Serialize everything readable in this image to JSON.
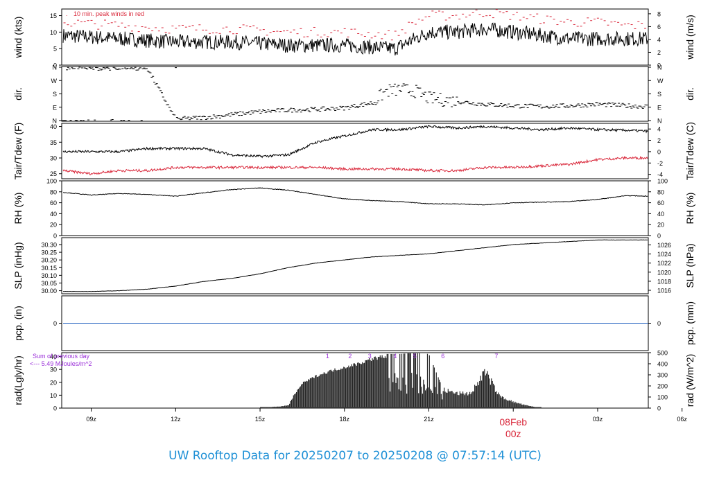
{
  "title": "UW Rooftop Data for 20250207  to  20250208 @ 07:57:14  (UTC)",
  "colors": {
    "line": "#000000",
    "dewpoint": "#d9273a",
    "peak": "#d9273a",
    "precip": "#1f5fbf",
    "footer": "#1e90d6",
    "day_label": "#d9273a",
    "rad_note": "#9b30d9"
  },
  "chart_data": [
    {
      "type": "line",
      "panel": "wind",
      "ylabel": "wind (kts)",
      "ylabel_right": "wind (m/s)",
      "ylim": [
        0,
        17
      ],
      "yticks": [
        "0",
        "5",
        "10",
        "15"
      ],
      "yticks_right": [
        "0",
        "2",
        "4",
        "6",
        "8"
      ],
      "annotation": "10 min. peak winds in red",
      "series": [
        {
          "role": "wind",
          "x": [
            8.0,
            10,
            12,
            14,
            16,
            18,
            19.8,
            20.5,
            21,
            22,
            23,
            24,
            25,
            26,
            27,
            28,
            28.8
          ],
          "y": [
            9,
            8,
            7,
            7,
            6,
            6,
            5,
            8,
            10,
            10,
            11,
            10,
            9,
            8,
            8,
            8,
            8
          ]
        },
        {
          "role": "peak",
          "x": [
            8.0,
            10,
            12,
            14,
            16,
            18,
            19.8,
            20.5,
            21,
            22,
            23,
            24,
            25,
            26,
            27,
            28,
            28.8
          ],
          "y": [
            13,
            12,
            11,
            11,
            10,
            10,
            9,
            13,
            15,
            15,
            16,
            15,
            14,
            13,
            13,
            12,
            12
          ]
        }
      ]
    },
    {
      "type": "scatter",
      "panel": "dir",
      "ylabel": "dir.",
      "ylabel_right": "dir.",
      "ylim": [
        0,
        360
      ],
      "yticks": [
        "N",
        "E",
        "S",
        "W",
        "N"
      ],
      "series": [
        {
          "role": "dir",
          "x": [
            8.0,
            9,
            10,
            11,
            12,
            13,
            14,
            15,
            16,
            17,
            18,
            19,
            19.5,
            20,
            20.5,
            21,
            22,
            23,
            24,
            25,
            26,
            27,
            28,
            28.8
          ],
          "y": [
            355,
            350,
            355,
            350,
            10,
            20,
            40,
            60,
            70,
            75,
            85,
            120,
            200,
            210,
            200,
            150,
            130,
            110,
            100,
            95,
            100,
            110,
            100,
            95
          ]
        }
      ]
    },
    {
      "type": "line",
      "panel": "temp",
      "ylabel": "Tair/Tdew (F)",
      "ylabel_right": "Tair/Tdew (C)",
      "ylim": [
        23.4,
        41
      ],
      "yticks": [
        "25",
        "30",
        "35",
        "40"
      ],
      "yticks_right": [
        "-4",
        "-2",
        "0",
        "2",
        "4"
      ],
      "series": [
        {
          "role": "air",
          "x": [
            8.0,
            9,
            10,
            11,
            12,
            13,
            14,
            15,
            16,
            16.5,
            17,
            18,
            18.5,
            19,
            20,
            21,
            22,
            23,
            24,
            25,
            26,
            27,
            28,
            28.8
          ],
          "y": [
            32,
            32,
            32,
            33,
            33,
            33,
            31,
            30.5,
            31,
            33,
            35,
            37,
            38,
            39,
            39,
            40,
            39.5,
            40,
            39.5,
            39,
            39.5,
            39,
            38.8,
            38.5
          ]
        },
        {
          "role": "dew",
          "x": [
            8.0,
            9,
            10,
            11,
            12,
            13,
            14,
            15,
            16,
            17,
            18,
            19,
            20,
            21,
            22,
            23,
            24,
            25,
            26,
            27,
            28,
            28.8
          ],
          "y": [
            26,
            25,
            26,
            26,
            27,
            27,
            27,
            27,
            27,
            27,
            26.5,
            26.5,
            26.5,
            26,
            26,
            27,
            27,
            27.5,
            28,
            29.5,
            30,
            30
          ]
        }
      ]
    },
    {
      "type": "line",
      "panel": "rh",
      "ylabel": "RH (%)",
      "ylabel_right": "RH (%)",
      "ylim": [
        0,
        100
      ],
      "yticks": [
        "0",
        "20",
        "40",
        "60",
        "80",
        "100"
      ],
      "yticks_right": [
        "0",
        "20",
        "40",
        "60",
        "80",
        "100"
      ],
      "series": [
        {
          "role": "rh",
          "x": [
            8.0,
            9,
            10,
            11,
            12,
            13,
            14,
            15,
            16,
            17,
            18,
            19,
            20,
            21,
            22,
            23,
            24,
            25,
            26,
            27,
            28,
            28.8
          ],
          "y": [
            79,
            74,
            77,
            75,
            72,
            78,
            84,
            87,
            83,
            75,
            67,
            64,
            62,
            58,
            58,
            56,
            60,
            61,
            62,
            66,
            73,
            72
          ]
        }
      ]
    },
    {
      "type": "line",
      "panel": "slp",
      "ylabel": "SLP (inHg)",
      "ylabel_right": "SLP (hPa)",
      "ylim": [
        29.98,
        30.345
      ],
      "yticks": [
        "30.00",
        "30.05",
        "30.10",
        "30.15",
        "30.20",
        "30.25",
        "30.30"
      ],
      "yticks_right": [
        "1016",
        "1018",
        "1020",
        "1022",
        "1024",
        "1026"
      ],
      "series": [
        {
          "role": "slp",
          "x": [
            8.0,
            9,
            10,
            11,
            12,
            13,
            14,
            15,
            16,
            17,
            18,
            19,
            20,
            21,
            22,
            23,
            24,
            25,
            26,
            27,
            28,
            28.8
          ],
          "y": [
            29.995,
            29.995,
            30.0,
            30.01,
            30.03,
            30.06,
            30.08,
            30.11,
            30.15,
            30.18,
            30.2,
            30.22,
            30.23,
            30.24,
            30.26,
            30.28,
            30.3,
            30.31,
            30.32,
            30.33,
            30.33,
            30.33
          ]
        }
      ]
    },
    {
      "type": "line",
      "panel": "pcp",
      "ylabel": "pcp. (in)",
      "ylabel_right": "pcp. (mm)",
      "ylim": [
        -1,
        1
      ],
      "yticks": [
        "0"
      ],
      "yticks_right": [
        "0"
      ],
      "series": [
        {
          "role": "pcp",
          "x": [
            8.0,
            28.8
          ],
          "y": [
            0,
            0
          ]
        }
      ]
    },
    {
      "type": "bar",
      "panel": "rad",
      "ylabel": "rad(Lgly/hr)",
      "ylabel_right": "rad (W/m^2)",
      "ylim": [
        0,
        43
      ],
      "yticks": [
        "0",
        "10",
        "20",
        "30",
        "40"
      ],
      "yticks_right": [
        "0",
        "100",
        "200",
        "300",
        "400",
        "500"
      ],
      "note_sum": "Sum of previous day",
      "note_value": "<--- 5.49 MJoules/m^2",
      "markers": [
        "1",
        "2",
        "3",
        "4",
        "5",
        "6",
        "7"
      ],
      "marker_x": [
        17.4,
        18.2,
        18.9,
        19.8,
        20.5,
        21.5,
        23.4
      ],
      "series": [
        {
          "role": "rad",
          "x": [
            15.0,
            15.5,
            16.0,
            16.2,
            16.5,
            17,
            17.5,
            18,
            18.5,
            19,
            19.5,
            20,
            20.5,
            21,
            21.5,
            22,
            22.5,
            23,
            23.5,
            24,
            24.5,
            25.0
          ],
          "y": [
            0,
            1,
            2,
            10,
            20,
            26,
            30,
            33,
            36,
            40,
            42,
            42,
            43,
            42,
            15,
            12,
            12,
            30,
            10,
            5,
            2,
            0
          ]
        }
      ]
    },
    {
      "type": "axis",
      "xlim": [
        7.95,
        28.8
      ],
      "xticks": [
        "09z",
        "12z",
        "15z",
        "18z",
        "21z",
        "03z",
        "06z"
      ],
      "xtick_values": [
        9,
        12,
        15,
        18,
        21,
        27,
        30
      ],
      "day_label": "08Feb",
      "day_sublabel": "00z",
      "day_value": 24
    }
  ]
}
